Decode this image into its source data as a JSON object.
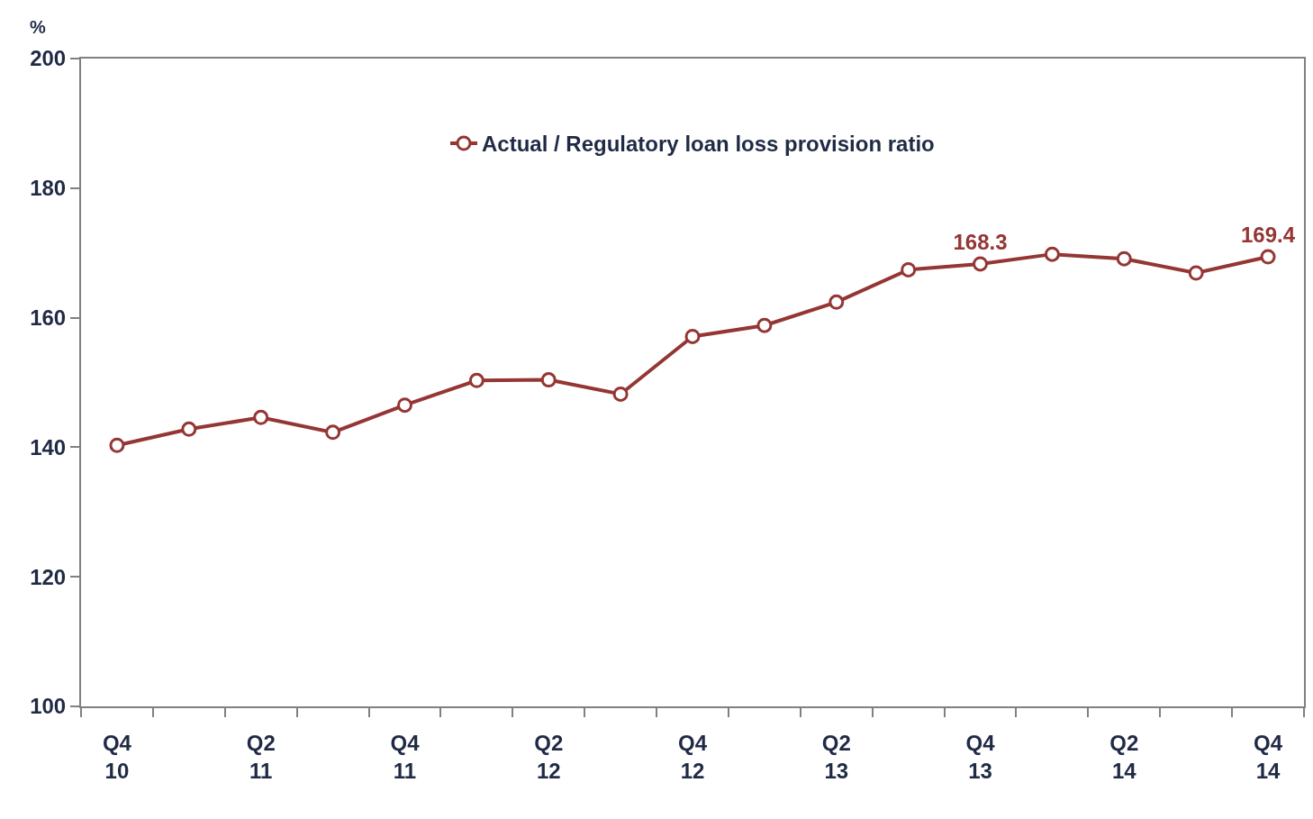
{
  "chart_data": {
    "type": "line",
    "categories": [
      "Q4\n10",
      null,
      "Q2\n11",
      null,
      "Q4\n11",
      null,
      "Q2\n12",
      null,
      "Q4\n12",
      null,
      "Q2\n13",
      null,
      "Q4\n13",
      null,
      "Q2\n14",
      null,
      "Q4\n14"
    ],
    "series": [
      {
        "name": "Actual / Regulatory loan loss provision ratio",
        "color": "#943634",
        "values": [
          140.3,
          142.8,
          144.6,
          142.3,
          146.5,
          150.3,
          150.4,
          148.2,
          157.1,
          158.8,
          162.4,
          167.4,
          168.3,
          169.8,
          169.1,
          166.9,
          169.4
        ],
        "value_labels": [
          null,
          null,
          null,
          null,
          null,
          null,
          null,
          null,
          null,
          null,
          null,
          null,
          "168.3",
          null,
          null,
          null,
          "169.4"
        ]
      }
    ],
    "ylabel": "%",
    "ylim": [
      100,
      200
    ],
    "yticks": [
      100,
      120,
      140,
      160,
      180,
      200
    ],
    "legend": "top",
    "marker": "circle",
    "line_style": "solid"
  }
}
